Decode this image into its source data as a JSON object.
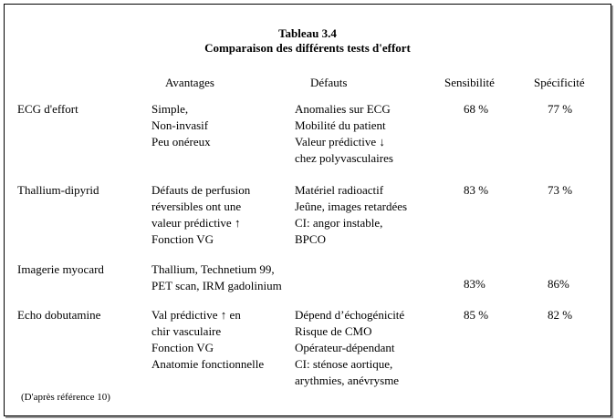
{
  "table": {
    "title": "Tableau 3.4",
    "subtitle": "Comparaison des différents tests d'effort",
    "headers": {
      "avantages": "Avantages",
      "defauts": "Défauts",
      "sensibilite": "Sensibilité",
      "specificite": "Spécificité"
    },
    "rows": [
      {
        "test": "ECG d'effort",
        "avantages": [
          "Simple,",
          "Non-invasif",
          "Peu onéreux"
        ],
        "defauts": [
          "Anomalies sur ECG",
          "Mobilité du patient",
          "Valeur prédictive ↓",
          "chez polyvasculaires"
        ],
        "sensibilite": "68 %",
        "specificite": "77 %"
      },
      {
        "test": "Thallium-dipyrid",
        "avantages": [
          "Défauts de perfusion",
          "réversibles ont une",
          "valeur prédictive ↑",
          "Fonction VG"
        ],
        "defauts": [
          "Matériel radioactif",
          "Jeûne, images retardées",
          "CI: angor instable,",
          "BPCO"
        ],
        "sensibilite": "83 %",
        "specificite": "73 %"
      },
      {
        "test": "Imagerie myocard",
        "avantages": [
          "Thallium, Technetium 99,",
          "PET scan, IRM gadolinium"
        ],
        "defauts": [],
        "sensibilite": "83%",
        "specificite": "86%"
      },
      {
        "test": "Echo dobutamine",
        "avantages": [
          "Val prédictive ↑ en",
          "chir vasculaire",
          "Fonction VG",
          "Anatomie fonctionnelle"
        ],
        "defauts": [
          "Dépend d’échogénicité",
          "Risque de CMO",
          "Opérateur-dépendant",
          "CI: sténose aortique,",
          "arythmies, anévrysme"
        ],
        "sensibilite": "85 %",
        "specificite": "82 %"
      }
    ],
    "footnote": "(D'après référence 10)"
  }
}
